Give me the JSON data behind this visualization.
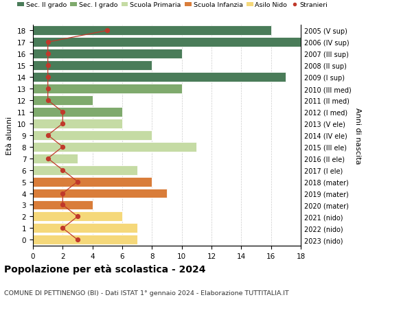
{
  "ages": [
    18,
    17,
    16,
    15,
    14,
    13,
    12,
    11,
    10,
    9,
    8,
    7,
    6,
    5,
    4,
    3,
    2,
    1,
    0
  ],
  "right_labels": [
    "2005 (V sup)",
    "2006 (IV sup)",
    "2007 (III sup)",
    "2008 (II sup)",
    "2009 (I sup)",
    "2010 (III med)",
    "2011 (II med)",
    "2012 (I med)",
    "2013 (V ele)",
    "2014 (IV ele)",
    "2015 (III ele)",
    "2016 (II ele)",
    "2017 (I ele)",
    "2018 (mater)",
    "2019 (mater)",
    "2020 (mater)",
    "2021 (nido)",
    "2022 (nido)",
    "2023 (nido)"
  ],
  "bar_values": [
    16,
    18,
    10,
    8,
    17,
    10,
    4,
    6,
    6,
    8,
    11,
    3,
    7,
    8,
    9,
    4,
    6,
    7,
    7
  ],
  "bar_colors": [
    "#4a7c59",
    "#4a7c59",
    "#4a7c59",
    "#4a7c59",
    "#4a7c59",
    "#7faa6d",
    "#7faa6d",
    "#7faa6d",
    "#c5dba4",
    "#c5dba4",
    "#c5dba4",
    "#c5dba4",
    "#c5dba4",
    "#d97d3a",
    "#d97d3a",
    "#d97d3a",
    "#f5d87a",
    "#f5d87a",
    "#f5d87a"
  ],
  "stranieri_x": [
    5,
    1,
    1,
    1,
    1,
    1,
    1,
    2,
    2,
    1,
    2,
    1,
    2,
    3,
    2,
    2,
    3,
    2,
    3
  ],
  "title": "Popolazione per età scolastica - 2024",
  "subtitle": "COMUNE DI PETTINENGO (BI) - Dati ISTAT 1° gennaio 2024 - Elaborazione TUTTITALIA.IT",
  "ylabel": "Età alunni",
  "y2label": "Anni di nascita",
  "legend_labels": [
    "Sec. II grado",
    "Sec. I grado",
    "Scuola Primaria",
    "Scuola Infanzia",
    "Asilo Nido",
    "Stranieri"
  ],
  "legend_colors": [
    "#4a7c59",
    "#7faa6d",
    "#c5dba4",
    "#d97d3a",
    "#f5d87a",
    "#c0392b"
  ],
  "color_stranieri": "#c0392b",
  "xlim": [
    0,
    18
  ],
  "ylim": [
    -0.5,
    18.5
  ],
  "bar_height": 0.82,
  "figsize": [
    6.0,
    4.6
  ],
  "dpi": 100
}
